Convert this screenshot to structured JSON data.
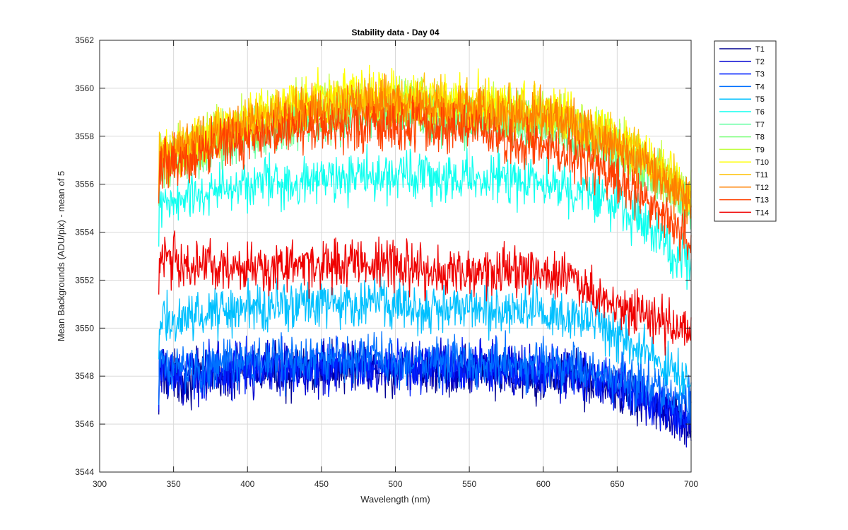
{
  "chart_data": {
    "type": "line",
    "title": "Stability data - Day 04",
    "xlabel": "Wavelength (nm)",
    "ylabel": "Mean Backgrounds (ADU/pix) - mean of 5",
    "xlim": [
      300,
      700
    ],
    "ylim": [
      3544,
      3562
    ],
    "xticks": [
      300,
      350,
      400,
      450,
      500,
      550,
      600,
      650,
      700
    ],
    "yticks": [
      3544,
      3546,
      3548,
      3550,
      3552,
      3554,
      3556,
      3558,
      3560,
      3562
    ],
    "grid": true,
    "legend_position": "outside-right",
    "x": [
      340,
      360,
      380,
      400,
      420,
      440,
      460,
      480,
      500,
      520,
      540,
      560,
      580,
      600,
      620,
      640,
      660,
      680,
      700
    ],
    "series": [
      {
        "name": "T1",
        "color": "#00008f",
        "values": [
          3548.0,
          3547.9,
          3548.1,
          3548.2,
          3548.2,
          3548.2,
          3548.3,
          3548.3,
          3548.2,
          3548.2,
          3548.2,
          3548.2,
          3548.1,
          3548.0,
          3548.0,
          3547.6,
          3547.2,
          3546.6,
          3545.9
        ]
      },
      {
        "name": "T2",
        "color": "#0000d0",
        "values": [
          3548.1,
          3548.0,
          3548.2,
          3548.3,
          3548.3,
          3548.3,
          3548.4,
          3548.4,
          3548.3,
          3548.3,
          3548.3,
          3548.3,
          3548.2,
          3548.1,
          3548.1,
          3547.7,
          3547.3,
          3546.7,
          3546.0
        ]
      },
      {
        "name": "T3",
        "color": "#0020ff",
        "values": [
          3548.2,
          3548.1,
          3548.3,
          3548.4,
          3548.4,
          3548.4,
          3548.5,
          3548.5,
          3548.4,
          3548.4,
          3548.4,
          3548.4,
          3548.3,
          3548.2,
          3548.2,
          3547.8,
          3547.4,
          3546.8,
          3546.1
        ]
      },
      {
        "name": "T4",
        "color": "#0070ff",
        "values": [
          3548.4,
          3548.3,
          3548.5,
          3548.6,
          3548.6,
          3548.6,
          3548.7,
          3548.7,
          3548.6,
          3548.6,
          3548.6,
          3548.6,
          3548.5,
          3548.4,
          3548.4,
          3548.1,
          3547.8,
          3547.4,
          3546.9
        ]
      },
      {
        "name": "T5",
        "color": "#00c0ff",
        "values": [
          3550.3,
          3550.4,
          3550.7,
          3550.9,
          3551.0,
          3551.0,
          3551.1,
          3551.1,
          3551.0,
          3550.9,
          3550.9,
          3550.9,
          3550.8,
          3550.7,
          3550.5,
          3550.1,
          3549.4,
          3548.5,
          3547.6
        ]
      },
      {
        "name": "T6",
        "color": "#10ffef",
        "values": [
          3555.0,
          3555.4,
          3555.7,
          3556.0,
          3556.1,
          3556.2,
          3556.3,
          3556.4,
          3556.4,
          3556.3,
          3556.2,
          3556.2,
          3556.1,
          3556.0,
          3555.8,
          3555.4,
          3554.7,
          3553.7,
          3552.5
        ]
      },
      {
        "name": "T7",
        "color": "#60ff9f",
        "values": [
          3556.7,
          3557.2,
          3557.7,
          3558.1,
          3558.4,
          3558.6,
          3558.8,
          3558.9,
          3558.9,
          3558.8,
          3558.7,
          3558.6,
          3558.5,
          3558.3,
          3558.0,
          3557.6,
          3557.0,
          3556.1,
          3555.0
        ]
      },
      {
        "name": "T8",
        "color": "#80ff80",
        "values": [
          3556.8,
          3557.4,
          3557.9,
          3558.3,
          3558.6,
          3558.9,
          3559.1,
          3559.2,
          3559.2,
          3559.1,
          3559.0,
          3558.9,
          3558.8,
          3558.6,
          3558.3,
          3557.8,
          3557.1,
          3556.2,
          3555.0
        ]
      },
      {
        "name": "T9",
        "color": "#c0ff40",
        "values": [
          3557.0,
          3557.6,
          3558.2,
          3558.6,
          3558.9,
          3559.2,
          3559.4,
          3559.5,
          3559.5,
          3559.4,
          3559.3,
          3559.2,
          3559.1,
          3558.9,
          3558.6,
          3558.1,
          3557.4,
          3556.5,
          3555.4
        ]
      },
      {
        "name": "T10",
        "color": "#ffff00",
        "values": [
          3557.1,
          3557.7,
          3558.3,
          3558.8,
          3559.1,
          3559.4,
          3559.6,
          3559.7,
          3559.7,
          3559.6,
          3559.5,
          3559.4,
          3559.3,
          3559.1,
          3558.8,
          3558.3,
          3557.6,
          3556.7,
          3555.6
        ]
      },
      {
        "name": "T11",
        "color": "#ffc000",
        "values": [
          3557.0,
          3557.6,
          3558.2,
          3558.6,
          3558.9,
          3559.2,
          3559.4,
          3559.5,
          3559.5,
          3559.4,
          3559.3,
          3559.2,
          3559.1,
          3558.9,
          3558.6,
          3558.1,
          3557.4,
          3556.5,
          3555.3
        ]
      },
      {
        "name": "T12",
        "color": "#ff8000",
        "values": [
          3556.9,
          3557.5,
          3558.0,
          3558.4,
          3558.7,
          3559.0,
          3559.2,
          3559.3,
          3559.3,
          3559.2,
          3559.1,
          3559.0,
          3558.9,
          3558.7,
          3558.4,
          3557.9,
          3557.2,
          3556.3,
          3555.1
        ]
      },
      {
        "name": "T13",
        "color": "#ff4000",
        "values": [
          3556.8,
          3557.2,
          3557.6,
          3557.9,
          3558.1,
          3558.3,
          3558.4,
          3558.5,
          3558.5,
          3558.4,
          3558.3,
          3558.1,
          3557.9,
          3557.6,
          3557.2,
          3556.6,
          3555.8,
          3554.8,
          3553.6
        ]
      },
      {
        "name": "T14",
        "color": "#ef0000",
        "values": [
          3553.0,
          3552.6,
          3552.5,
          3552.5,
          3552.5,
          3552.6,
          3552.7,
          3552.7,
          3552.6,
          3552.4,
          3552.3,
          3552.3,
          3552.4,
          3552.4,
          3552.1,
          3551.3,
          3550.6,
          3550.2,
          3549.9
        ]
      }
    ]
  }
}
